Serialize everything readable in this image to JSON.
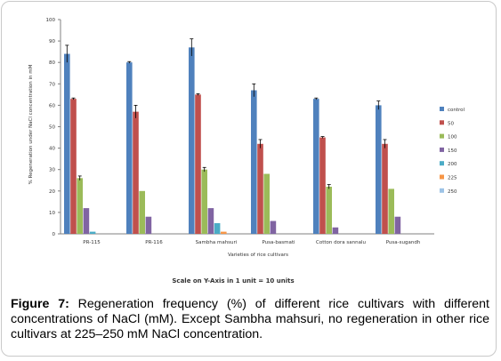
{
  "chart_data": {
    "type": "bar",
    "ylabel": "% Regeneration under NaCl concentration in mM",
    "xlabel": "Varieties of rice cultivars",
    "footnote": "Scale on Y-Axis in 1 unit = 10 units",
    "ylim": [
      0,
      100
    ],
    "yticks": [
      0,
      10,
      20,
      30,
      40,
      50,
      60,
      70,
      80,
      90,
      100
    ],
    "grid": false,
    "legend_position": "right",
    "categories": [
      "PR-115",
      "PR-116",
      "Sambha mahsuri",
      "Pusa-basmati",
      "Cotton dora sannalu",
      "Pusa-sugandh"
    ],
    "series": [
      {
        "name": "control",
        "color": "#4f81bd",
        "values": [
          84,
          80,
          87,
          67,
          63,
          60
        ],
        "errors": [
          4,
          0,
          4,
          3,
          0,
          2
        ]
      },
      {
        "name": "50",
        "color": "#c0504d",
        "values": [
          63,
          57,
          65,
          42,
          45,
          42
        ],
        "errors": [
          0,
          3,
          0,
          2,
          0,
          2
        ]
      },
      {
        "name": "100",
        "color": "#9bbb59",
        "values": [
          26,
          20,
          30,
          28,
          22,
          21
        ],
        "errors": [
          1,
          0,
          1,
          0,
          1,
          0
        ]
      },
      {
        "name": "150",
        "color": "#8064a2",
        "values": [
          12,
          8,
          12,
          6,
          3,
          8
        ],
        "errors": [
          0,
          0,
          0,
          0,
          0,
          0
        ]
      },
      {
        "name": "200",
        "color": "#4bacc6",
        "values": [
          1,
          0,
          5,
          0,
          0,
          0
        ],
        "errors": [
          0,
          0,
          0,
          0,
          0,
          0
        ]
      },
      {
        "name": "225",
        "color": "#f79646",
        "values": [
          0,
          0,
          1,
          0,
          0,
          0
        ],
        "errors": [
          0,
          0,
          0,
          0,
          0,
          0
        ]
      },
      {
        "name": "250",
        "color": "#9dc3e6",
        "values": [
          0,
          0,
          0,
          0,
          0,
          0
        ],
        "errors": [
          0,
          0,
          0,
          0,
          0,
          0
        ]
      }
    ]
  },
  "caption": {
    "label": "Figure 7:",
    "text": " Regeneration frequency (%) of different rice cultivars with different concentrations of NaCl (mM). Except Sambha mahsuri, no regeneration in other rice cultivars at 225–250 mM NaCl concentration."
  }
}
